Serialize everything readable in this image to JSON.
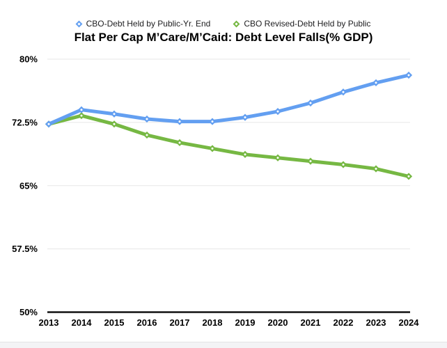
{
  "chart_data": {
    "type": "line",
    "title": "Flat Per Cap M’Care/M’Caid: Debt Level Falls(% GDP)",
    "x": [
      2013,
      2014,
      2015,
      2016,
      2017,
      2018,
      2019,
      2020,
      2021,
      2022,
      2023,
      2024
    ],
    "series": [
      {
        "name": "CBO-Debt Held by Public-Yr. End",
        "color": "#639FF1",
        "values": [
          72.3,
          74.0,
          73.5,
          72.9,
          72.6,
          72.6,
          73.1,
          73.8,
          74.8,
          76.1,
          77.2,
          78.1
        ]
      },
      {
        "name": "CBO Revised-Debt Held by Public",
        "color": "#76B843",
        "values": [
          72.3,
          73.3,
          72.3,
          71.0,
          70.1,
          69.4,
          68.7,
          68.3,
          67.9,
          67.5,
          67.0,
          66.1
        ]
      }
    ],
    "ylim": [
      50,
      80
    ],
    "yticks": [
      {
        "label": "80%",
        "value": 80
      },
      {
        "label": "72.5%",
        "value": 72.5
      },
      {
        "label": "65%",
        "value": 65
      },
      {
        "label": "57.5%",
        "value": 57.5
      },
      {
        "label": "50%",
        "value": 50
      }
    ],
    "xlabel": "",
    "ylabel": "",
    "grid": "horizontal",
    "legend_position": "top",
    "marker": "diamond"
  },
  "colors": {
    "gridline": "#E7E7E7",
    "axis": "#111111",
    "marker_center": "#FFFFFF",
    "footer_bg": "#F3F3F5",
    "footer_border": "#E3E3E5"
  }
}
